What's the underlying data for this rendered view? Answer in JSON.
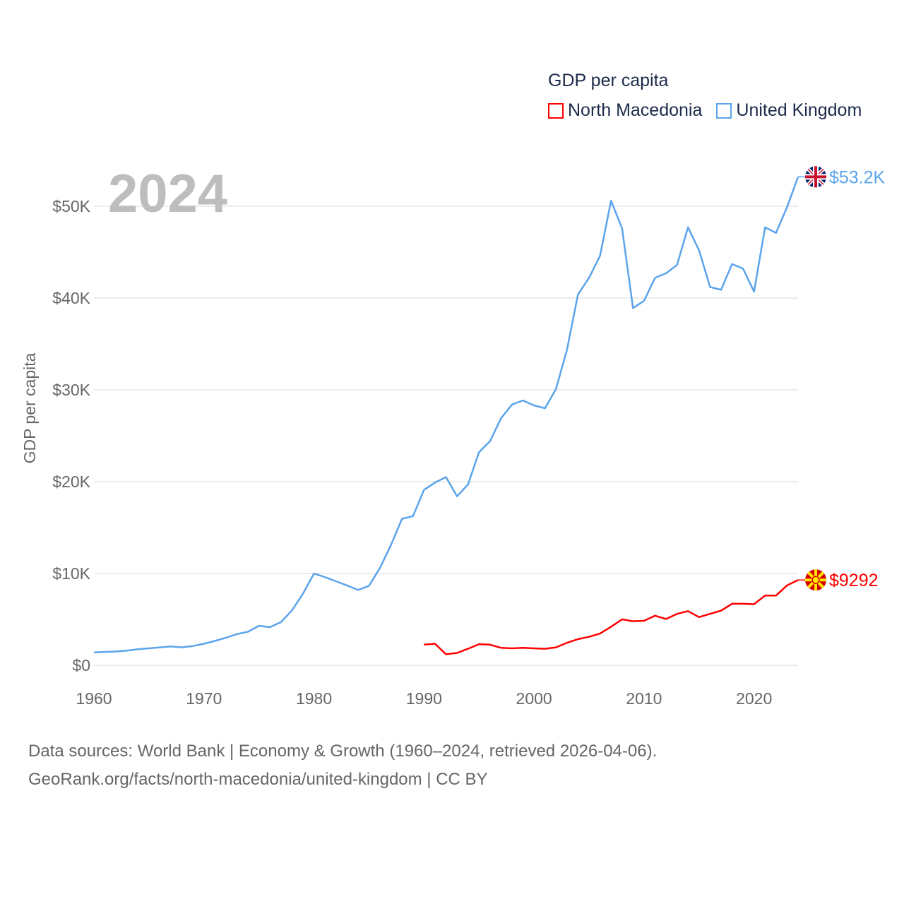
{
  "chart_data": {
    "type": "line",
    "title": "GDP per capita",
    "year_label": "2024",
    "xlabel": "",
    "ylabel": "GDP per capita",
    "xlim": [
      1960,
      2024
    ],
    "ylim": [
      0,
      53.2
    ],
    "x_ticks": [
      1960,
      1970,
      1980,
      1990,
      2000,
      2010,
      2020
    ],
    "x_tick_labels": [
      "1960",
      "1970",
      "1980",
      "1990",
      "2000",
      "2010",
      "2020"
    ],
    "y_ticks": [
      0,
      10,
      20,
      30,
      40,
      50
    ],
    "y_tick_labels": [
      "$0",
      "$10K",
      "$20K",
      "$30K",
      "$40K",
      "$50K"
    ],
    "grid": true,
    "legend_position": "top-right",
    "units": "thousand USD",
    "series": [
      {
        "name": "North Macedonia",
        "color": "#ff0000",
        "end_label": "$9292",
        "flag": "north-macedonia-flag",
        "start_year": 1990,
        "values": [
          2.25,
          2.35,
          1.2,
          1.35,
          1.8,
          2.3,
          2.25,
          1.9,
          1.85,
          1.9,
          1.85,
          1.8,
          1.95,
          2.45,
          2.85,
          3.1,
          3.45,
          4.2,
          5.0,
          4.8,
          4.85,
          5.4,
          5.05,
          5.6,
          5.9,
          5.25,
          5.6,
          5.95,
          6.7,
          6.7,
          6.65,
          7.6,
          7.6,
          8.7,
          9.292
        ]
      },
      {
        "name": "United Kingdom",
        "color": "#5ba4ec",
        "end_label": "$53.2K",
        "flag": "united-kingdom-flag",
        "start_year": 1960,
        "values": [
          1.4,
          1.45,
          1.5,
          1.6,
          1.75,
          1.85,
          1.95,
          2.05,
          1.95,
          2.1,
          2.35,
          2.65,
          3.0,
          3.4,
          3.65,
          4.3,
          4.15,
          4.7,
          5.98,
          7.8,
          10.0,
          9.6,
          9.15,
          8.7,
          8.2,
          8.65,
          10.6,
          13.1,
          15.95,
          16.25,
          19.1,
          19.9,
          20.5,
          18.4,
          19.7,
          23.2,
          24.4,
          26.9,
          28.4,
          28.85,
          28.3,
          28.0,
          30.1,
          34.4,
          40.4,
          42.2,
          44.6,
          50.6,
          47.6,
          38.9,
          39.7,
          42.2,
          42.7,
          43.6,
          47.7,
          45.2,
          41.2,
          40.9,
          43.7,
          43.2,
          40.7,
          47.7,
          47.1,
          49.9,
          53.2
        ]
      }
    ]
  },
  "footer": {
    "line1": "Data sources: World Bank | Economy & Growth (1960–2024, retrieved 2026-04-06).",
    "line2": "GeoRank.org/facts/north-macedonia/united-kingdom | CC BY"
  }
}
